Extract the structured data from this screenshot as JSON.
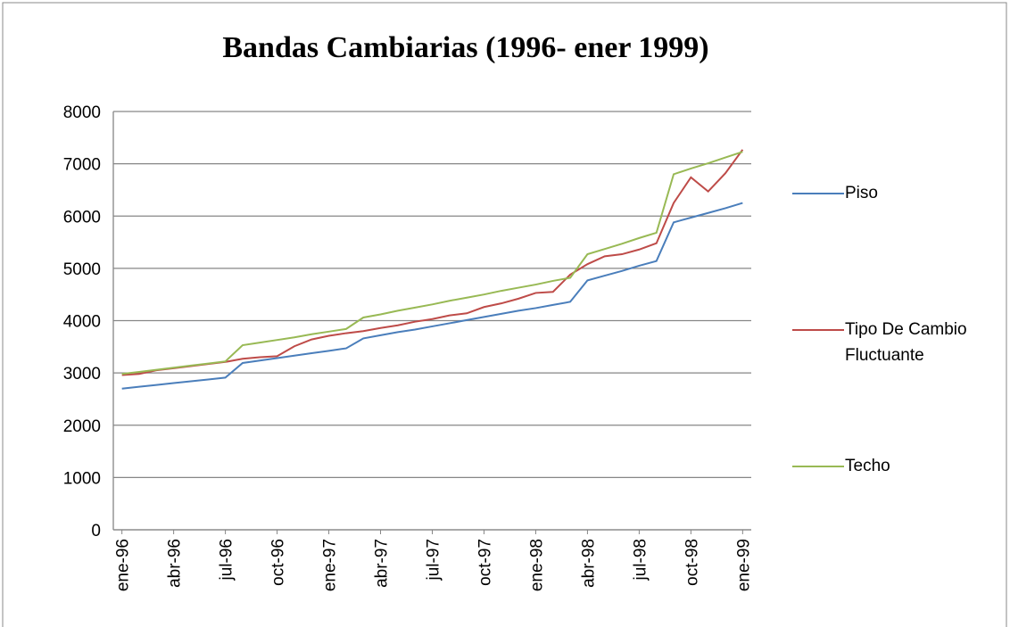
{
  "chart_data": {
    "type": "line",
    "title": "Bandas Cambiarias (1996- ener 1999)",
    "categories": [
      "ene-96",
      null,
      null,
      "abr-96",
      null,
      null,
      "jul-96",
      null,
      null,
      "oct-96",
      null,
      null,
      "ene-97",
      null,
      null,
      "abr-97",
      null,
      null,
      "jul-97",
      null,
      null,
      "oct-97",
      null,
      null,
      "ene-98",
      null,
      null,
      "abr-98",
      null,
      null,
      "jul-98",
      null,
      null,
      "oct-98",
      null,
      null,
      "ene-99"
    ],
    "series": [
      {
        "name": "Piso",
        "color": "#4a7ebb",
        "values": [
          2700,
          2735,
          2770,
          2805,
          2840,
          2875,
          2910,
          3190,
          3237,
          3283,
          3330,
          3377,
          3423,
          3470,
          3660,
          3720,
          3780,
          3830,
          3890,
          3950,
          4010,
          4070,
          4130,
          4190,
          4240,
          4300,
          4360,
          4770,
          4860,
          4950,
          5050,
          5140,
          5880,
          5970,
          6060,
          6150,
          6250
        ]
      },
      {
        "name": "Tipo De Cambio Fluctuante",
        "color": "#be4b48",
        "values": [
          2960,
          2980,
          3050,
          3090,
          3130,
          3170,
          3210,
          3270,
          3300,
          3320,
          3510,
          3640,
          3710,
          3760,
          3800,
          3860,
          3910,
          3980,
          4030,
          4100,
          4140,
          4260,
          4330,
          4420,
          4530,
          4550,
          4880,
          5080,
          5230,
          5270,
          5360,
          5480,
          6250,
          6740,
          6470,
          6820,
          7270
        ]
      },
      {
        "name": "Techo",
        "color": "#98b954",
        "values": [
          2980,
          3020,
          3060,
          3100,
          3140,
          3180,
          3220,
          3530,
          3580,
          3630,
          3680,
          3740,
          3790,
          3840,
          4060,
          4120,
          4190,
          4250,
          4310,
          4380,
          4440,
          4500,
          4570,
          4630,
          4690,
          4760,
          4820,
          5270,
          5370,
          5470,
          5580,
          5680,
          6800,
          6910,
          7010,
          7120,
          7230
        ]
      }
    ],
    "ylim": [
      0,
      8000
    ],
    "yticks": [
      0,
      1000,
      2000,
      3000,
      4000,
      5000,
      6000,
      7000,
      8000
    ],
    "grid": true,
    "legend": "right"
  }
}
